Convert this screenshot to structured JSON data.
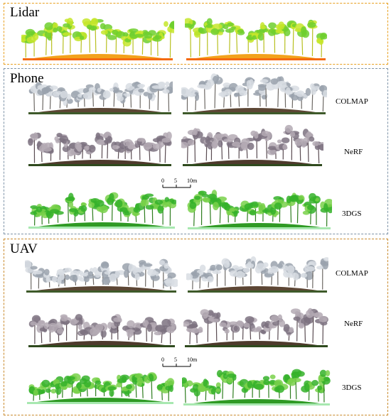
{
  "panels": {
    "lidar": {
      "title": "Lidar",
      "border_color": "#e8a020"
    },
    "phone": {
      "title": "Phone",
      "border_color": "#7f94a8"
    },
    "uav": {
      "title": "UAV",
      "border_color": "#c98a2c"
    }
  },
  "methods": {
    "colmap": "COLMAP",
    "nerf": "NeRF",
    "gs": "3DGS"
  },
  "scale": {
    "t0": "0",
    "t1": "5",
    "t2": "10m"
  },
  "palettes": {
    "lidar": {
      "tree": "#6fcf2e",
      "tree2": "#c6e62a",
      "trunk": "#b8c020",
      "ground": "#f2a21c",
      "ground2": "#f46a10"
    },
    "colmap": {
      "tree": "#d8dde3",
      "tree2": "#9aa2ad",
      "trunk": "#6e6a66",
      "ground": "#5c4634",
      "ground2": "#3e5a2a"
    },
    "nerf": {
      "tree": "#b4aab4",
      "tree2": "#7c7280",
      "trunk": "#5a4c52",
      "ground": "#4e3a2c",
      "ground2": "#2f4a1e"
    },
    "gs": {
      "tree": "#35b12a",
      "tree2": "#79d14a",
      "trunk": "#2e7d1f",
      "ground": "#2f9a24",
      "ground2": "#a8e8b0"
    }
  }
}
